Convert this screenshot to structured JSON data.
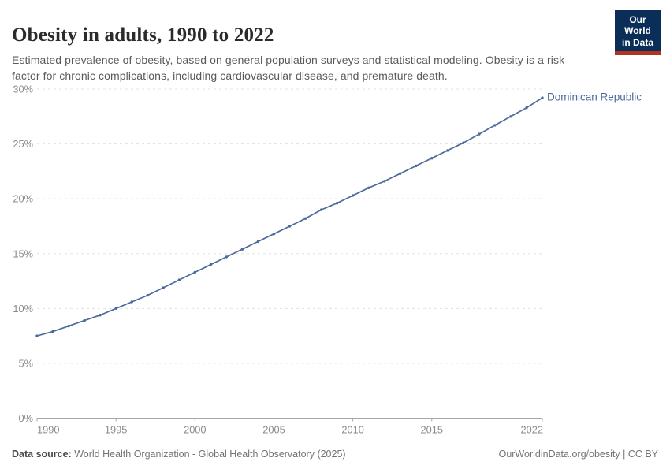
{
  "header": {
    "title": "Obesity in adults, 1990 to 2022",
    "subtitle": "Estimated prevalence of obesity, based on general population surveys and statistical modeling. Obesity is a risk factor for chronic complications, including cardiovascular disease, and premature death."
  },
  "logo": {
    "line1": "Our World",
    "line2": "in Data"
  },
  "chart_data": {
    "type": "line",
    "title": "Obesity in adults, 1990 to 2022",
    "xlabel": "",
    "ylabel": "",
    "xlim": [
      1990,
      2022
    ],
    "ylim": [
      0,
      30
    ],
    "x_ticks": [
      1990,
      1995,
      2000,
      2005,
      2010,
      2015,
      2022
    ],
    "y_ticks": [
      0,
      5,
      10,
      15,
      20,
      25,
      30
    ],
    "y_tick_suffix": "%",
    "grid": "horizontal-dashed",
    "legend_position": "label-at-line-end",
    "x": [
      1990,
      1991,
      1992,
      1993,
      1994,
      1995,
      1996,
      1997,
      1998,
      1999,
      2000,
      2001,
      2002,
      2003,
      2004,
      2005,
      2006,
      2007,
      2008,
      2009,
      2010,
      2011,
      2012,
      2013,
      2014,
      2015,
      2016,
      2017,
      2018,
      2019,
      2020,
      2021,
      2022
    ],
    "series": [
      {
        "name": "Dominican Republic",
        "color": "#4C6A9C",
        "values": [
          7.5,
          7.9,
          8.4,
          8.9,
          9.4,
          10.0,
          10.6,
          11.2,
          11.9,
          12.6,
          13.3,
          14.0,
          14.7,
          15.4,
          16.1,
          16.8,
          17.5,
          18.2,
          19.0,
          19.6,
          20.3,
          21.0,
          21.6,
          22.3,
          23.0,
          23.7,
          24.4,
          25.1,
          25.9,
          26.7,
          27.5,
          28.3,
          29.2
        ]
      }
    ]
  },
  "colors": {
    "line": "#4C6A9C",
    "grid": "#e0e0e0",
    "axis": "#a8a8a8",
    "tick_label": "#8b8b8b",
    "logo_bg": "#0b2e59",
    "logo_stripe": "#b13325"
  },
  "footer": {
    "source_label": "Data source:",
    "source_text": " World Health Organization - Global Health Observatory (2025)",
    "credit": "OurWorldinData.org/obesity | CC BY"
  }
}
